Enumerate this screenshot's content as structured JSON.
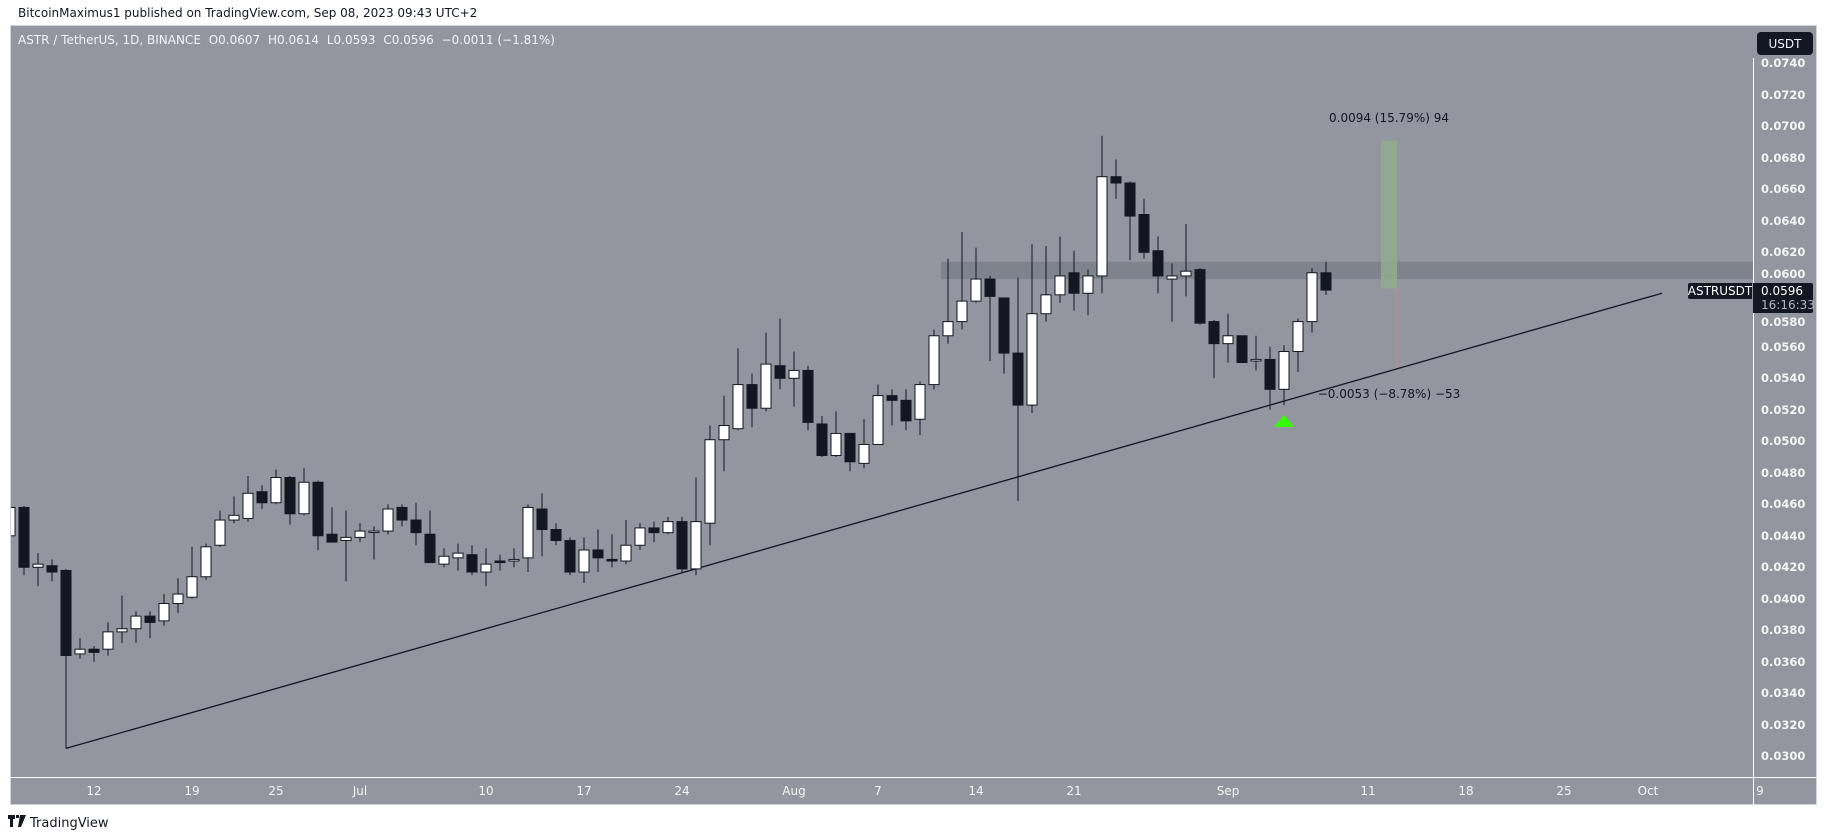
{
  "publish_line": "BitcoinMaximus1 published on TradingView.com, Sep 08, 2023 09:43 UTC+2",
  "legend": {
    "symbol": "ASTR / TetherUS, 1D, BINANCE",
    "open": "O0.0607",
    "high": "H0.0614",
    "low": "L0.0593",
    "close": "C0.0596",
    "change": "−0.0011 (−1.81%)"
  },
  "currency_button": "USDT",
  "last_price": {
    "symbol": "ASTRUSDT",
    "price": "0.0596",
    "countdown": "16:16:33"
  },
  "brand": "TradingView",
  "colors": {
    "background": "#93969f",
    "up_body": "#ffffff",
    "down_body": "#131722",
    "target_zone": "#8fae8c",
    "stop_line": "#c98a8a",
    "marker": "#33ff00",
    "resistance_zone": "#80838c"
  },
  "chart_data": {
    "type": "candlestick",
    "title": "ASTR / TetherUS, 1D, BINANCE",
    "ylim": [
      0.03,
      0.074
    ],
    "y_ticks": [
      "0.0740",
      "0.0720",
      "0.0700",
      "0.0680",
      "0.0660",
      "0.0640",
      "0.0620",
      "0.0600",
      "0.0580",
      "0.0560",
      "0.0540",
      "0.0520",
      "0.0500",
      "0.0480",
      "0.0460",
      "0.0440",
      "0.0420",
      "0.0400",
      "0.0380",
      "0.0360",
      "0.0340",
      "0.0320",
      "0.0300"
    ],
    "x_ticks": [
      {
        "label": "12",
        "date": "2023-06-12"
      },
      {
        "label": "19",
        "date": "2023-06-19"
      },
      {
        "label": "25",
        "date": "2023-06-25"
      },
      {
        "label": "Jul",
        "date": "2023-07-01"
      },
      {
        "label": "10",
        "date": "2023-07-10"
      },
      {
        "label": "17",
        "date": "2023-07-17"
      },
      {
        "label": "24",
        "date": "2023-07-24"
      },
      {
        "label": "Aug",
        "date": "2023-08-01"
      },
      {
        "label": "7",
        "date": "2023-08-07"
      },
      {
        "label": "14",
        "date": "2023-08-14"
      },
      {
        "label": "21",
        "date": "2023-08-21"
      },
      {
        "label": "Sep",
        "date": "2023-09-01"
      },
      {
        "label": "11",
        "date": "2023-09-11"
      },
      {
        "label": "18",
        "date": "2023-09-18"
      },
      {
        "label": "25",
        "date": "2023-09-25"
      },
      {
        "label": "Oct",
        "date": "2023-10-01"
      },
      {
        "label": "9",
        "date": "2023-10-09"
      }
    ],
    "grid": false,
    "columns": [
      "date",
      "open",
      "high",
      "low",
      "close"
    ],
    "candles": [
      [
        "2023-06-06",
        0.044,
        0.046,
        0.0436,
        0.0458
      ],
      [
        "2023-06-07",
        0.0458,
        0.0459,
        0.0415,
        0.042
      ],
      [
        "2023-06-08",
        0.042,
        0.0429,
        0.0408,
        0.0422
      ],
      [
        "2023-06-09",
        0.0421,
        0.0425,
        0.0411,
        0.0417
      ],
      [
        "2023-06-10",
        0.0418,
        0.0419,
        0.0305,
        0.0364
      ],
      [
        "2023-06-11",
        0.0365,
        0.0375,
        0.0362,
        0.0368
      ],
      [
        "2023-06-12",
        0.0368,
        0.037,
        0.036,
        0.0366
      ],
      [
        "2023-06-13",
        0.0368,
        0.0385,
        0.0364,
        0.0379
      ],
      [
        "2023-06-14",
        0.0379,
        0.0402,
        0.0372,
        0.0381
      ],
      [
        "2023-06-15",
        0.0381,
        0.0392,
        0.0372,
        0.0389
      ],
      [
        "2023-06-16",
        0.0389,
        0.0392,
        0.0375,
        0.0385
      ],
      [
        "2023-06-17",
        0.0386,
        0.0403,
        0.0383,
        0.0397
      ],
      [
        "2023-06-18",
        0.0397,
        0.0413,
        0.0391,
        0.0403
      ],
      [
        "2023-06-19",
        0.0401,
        0.0433,
        0.04,
        0.0414
      ],
      [
        "2023-06-20",
        0.0414,
        0.0435,
        0.0412,
        0.0433
      ],
      [
        "2023-06-21",
        0.0434,
        0.0456,
        0.0433,
        0.045
      ],
      [
        "2023-06-22",
        0.045,
        0.0465,
        0.0448,
        0.0453
      ],
      [
        "2023-06-23",
        0.0451,
        0.0478,
        0.0449,
        0.0467
      ],
      [
        "2023-06-24",
        0.0468,
        0.0472,
        0.0457,
        0.0461
      ],
      [
        "2023-06-25",
        0.0461,
        0.0482,
        0.046,
        0.0477
      ],
      [
        "2023-06-26",
        0.0477,
        0.0478,
        0.0447,
        0.0454
      ],
      [
        "2023-06-27",
        0.0454,
        0.0483,
        0.0453,
        0.0474
      ],
      [
        "2023-06-28",
        0.0474,
        0.0475,
        0.0431,
        0.044
      ],
      [
        "2023-06-29",
        0.0441,
        0.0458,
        0.0436,
        0.0436
      ],
      [
        "2023-06-30",
        0.0437,
        0.0456,
        0.0411,
        0.0439
      ],
      [
        "2023-07-01",
        0.0439,
        0.0448,
        0.0436,
        0.0443
      ],
      [
        "2023-07-02",
        0.0443,
        0.0446,
        0.0425,
        0.0443
      ],
      [
        "2023-07-03",
        0.0443,
        0.046,
        0.0441,
        0.0457
      ],
      [
        "2023-07-04",
        0.0458,
        0.046,
        0.0446,
        0.045
      ],
      [
        "2023-07-05",
        0.045,
        0.0461,
        0.0434,
        0.0442
      ],
      [
        "2023-07-06",
        0.0441,
        0.0456,
        0.0423,
        0.0423
      ],
      [
        "2023-07-07",
        0.0422,
        0.0432,
        0.042,
        0.0427
      ],
      [
        "2023-07-08",
        0.0426,
        0.0435,
        0.0418,
        0.0429
      ],
      [
        "2023-07-09",
        0.0428,
        0.0434,
        0.0415,
        0.0417
      ],
      [
        "2023-07-10",
        0.0417,
        0.0432,
        0.0408,
        0.0422
      ],
      [
        "2023-07-11",
        0.0424,
        0.0428,
        0.0418,
        0.0423
      ],
      [
        "2023-07-12",
        0.0424,
        0.0432,
        0.042,
        0.0425
      ],
      [
        "2023-07-13",
        0.0426,
        0.046,
        0.0417,
        0.0458
      ],
      [
        "2023-07-14",
        0.0457,
        0.0467,
        0.0427,
        0.0444
      ],
      [
        "2023-07-15",
        0.0444,
        0.0448,
        0.0434,
        0.0437
      ],
      [
        "2023-07-16",
        0.0437,
        0.0439,
        0.0415,
        0.0417
      ],
      [
        "2023-07-17",
        0.0417,
        0.0439,
        0.041,
        0.0431
      ],
      [
        "2023-07-18",
        0.0431,
        0.0444,
        0.0417,
        0.0426
      ],
      [
        "2023-07-19",
        0.0425,
        0.0441,
        0.042,
        0.0424
      ],
      [
        "2023-07-20",
        0.0424,
        0.045,
        0.0422,
        0.0434
      ],
      [
        "2023-07-21",
        0.0434,
        0.0448,
        0.0431,
        0.0445
      ],
      [
        "2023-07-22",
        0.0445,
        0.0449,
        0.0436,
        0.0442
      ],
      [
        "2023-07-23",
        0.0442,
        0.0452,
        0.0441,
        0.0449
      ],
      [
        "2023-07-24",
        0.0449,
        0.0452,
        0.0417,
        0.0419
      ],
      [
        "2023-07-25",
        0.0419,
        0.0477,
        0.0415,
        0.0449
      ],
      [
        "2023-07-26",
        0.0448,
        0.051,
        0.0434,
        0.0501
      ],
      [
        "2023-07-27",
        0.0501,
        0.0529,
        0.0481,
        0.051
      ],
      [
        "2023-07-28",
        0.0508,
        0.0559,
        0.0507,
        0.0536
      ],
      [
        "2023-07-29",
        0.0536,
        0.0543,
        0.0509,
        0.0521
      ],
      [
        "2023-07-30",
        0.0521,
        0.0569,
        0.0519,
        0.0549
      ],
      [
        "2023-07-31",
        0.0548,
        0.0578,
        0.0533,
        0.054
      ],
      [
        "2023-08-01",
        0.054,
        0.0557,
        0.0522,
        0.0545
      ],
      [
        "2023-08-02",
        0.0545,
        0.0548,
        0.0507,
        0.0512
      ],
      [
        "2023-08-03",
        0.0511,
        0.0516,
        0.049,
        0.0491
      ],
      [
        "2023-08-04",
        0.0491,
        0.0519,
        0.049,
        0.0505
      ],
      [
        "2023-08-05",
        0.0505,
        0.0505,
        0.0481,
        0.0487
      ],
      [
        "2023-08-06",
        0.0486,
        0.0514,
        0.0483,
        0.0498
      ],
      [
        "2023-08-07",
        0.0498,
        0.0536,
        0.0498,
        0.0529
      ],
      [
        "2023-08-08",
        0.0529,
        0.0533,
        0.051,
        0.0526
      ],
      [
        "2023-08-09",
        0.0526,
        0.0533,
        0.0507,
        0.0513
      ],
      [
        "2023-08-10",
        0.0514,
        0.0538,
        0.0504,
        0.0536
      ],
      [
        "2023-08-11",
        0.0536,
        0.0571,
        0.0533,
        0.0567
      ],
      [
        "2023-08-12",
        0.0567,
        0.0616,
        0.0562,
        0.0576
      ],
      [
        "2023-08-13",
        0.0576,
        0.0633,
        0.0571,
        0.0589
      ],
      [
        "2023-08-14",
        0.0589,
        0.0623,
        0.0588,
        0.0603
      ],
      [
        "2023-08-15",
        0.0603,
        0.0605,
        0.0551,
        0.0592
      ],
      [
        "2023-08-16",
        0.0591,
        0.0591,
        0.0543,
        0.0556
      ],
      [
        "2023-08-17",
        0.0556,
        0.0604,
        0.0462,
        0.0523
      ],
      [
        "2023-08-18",
        0.0523,
        0.0625,
        0.0518,
        0.0581
      ],
      [
        "2023-08-19",
        0.0581,
        0.0624,
        0.0576,
        0.0593
      ],
      [
        "2023-08-20",
        0.0593,
        0.063,
        0.0588,
        0.0605
      ],
      [
        "2023-08-21",
        0.0607,
        0.0621,
        0.0583,
        0.0594
      ],
      [
        "2023-08-22",
        0.0594,
        0.0609,
        0.058,
        0.0605
      ],
      [
        "2023-08-23",
        0.0605,
        0.0694,
        0.0594,
        0.0668
      ],
      [
        "2023-08-24",
        0.0668,
        0.0679,
        0.0654,
        0.0664
      ],
      [
        "2023-08-25",
        0.0664,
        0.0665,
        0.0615,
        0.0643
      ],
      [
        "2023-08-26",
        0.0644,
        0.0654,
        0.0616,
        0.062
      ],
      [
        "2023-08-27",
        0.0621,
        0.063,
        0.0594,
        0.0605
      ],
      [
        "2023-08-28",
        0.0603,
        0.0613,
        0.0576,
        0.0605
      ],
      [
        "2023-08-29",
        0.0605,
        0.0638,
        0.0592,
        0.0608
      ],
      [
        "2023-08-30",
        0.0609,
        0.061,
        0.0574,
        0.0575
      ],
      [
        "2023-08-31",
        0.0576,
        0.0577,
        0.054,
        0.0562
      ],
      [
        "2023-09-01",
        0.0562,
        0.0581,
        0.055,
        0.0567
      ],
      [
        "2023-09-02",
        0.0567,
        0.0567,
        0.055,
        0.055
      ],
      [
        "2023-09-03",
        0.0551,
        0.0567,
        0.0545,
        0.0552
      ],
      [
        "2023-09-04",
        0.0552,
        0.056,
        0.052,
        0.0533
      ],
      [
        "2023-09-05",
        0.0533,
        0.0561,
        0.0523,
        0.0557
      ],
      [
        "2023-09-06",
        0.0557,
        0.0578,
        0.0544,
        0.0576
      ],
      [
        "2023-09-07",
        0.0576,
        0.061,
        0.0569,
        0.0607
      ],
      [
        "2023-09-08",
        0.0607,
        0.0614,
        0.0593,
        0.0596
      ]
    ],
    "annotations": {
      "trendline": {
        "from": {
          "date": "2023-06-10",
          "price": 0.0305
        },
        "to": {
          "date": "2023-10-02",
          "price": 0.0594
        }
      },
      "resistance_zone": {
        "from_date": "2023-08-12",
        "low": 0.0603,
        "high": 0.0614
      },
      "position": {
        "from_date": "2023-09-12",
        "to_date": "2023-09-13",
        "entry": 0.0597,
        "target": 0.0691,
        "stop": 0.0544,
        "target_label": "0.0094 (15.79%) 94",
        "stop_label": "−0.0053 (−8.78%) −53"
      },
      "marker": {
        "date": "2023-09-05",
        "price": 0.0513,
        "shape": "triangle-up"
      }
    }
  }
}
